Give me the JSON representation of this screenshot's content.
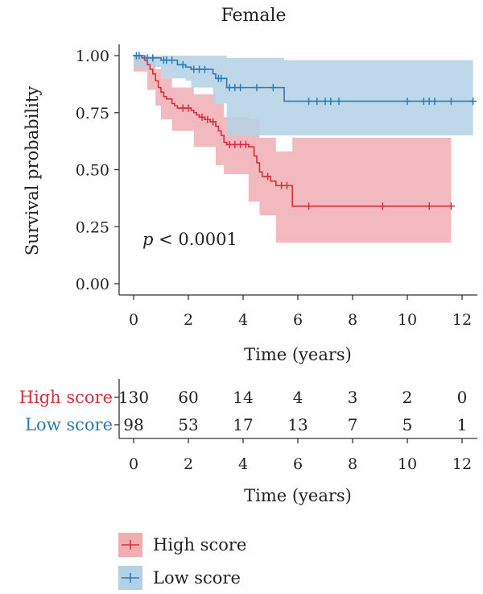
{
  "chart_data": {
    "type": "line",
    "subtype": "kaplan-meier",
    "title": "Female",
    "xlabel": "Time (years)",
    "ylabel": "Survival probability",
    "xlim": [
      -0.5,
      12.5
    ],
    "ylim": [
      -0.05,
      1.05
    ],
    "x_ticks": [
      0,
      2,
      4,
      6,
      8,
      10,
      12
    ],
    "y_ticks": [
      0.0,
      0.25,
      0.5,
      0.75,
      1.0
    ],
    "y_tick_labels": [
      "0.00",
      "0.25",
      "0.50",
      "0.75",
      "1.00"
    ],
    "grid": false,
    "annotation": {
      "italic": "p",
      "text": " < 0.0001"
    },
    "series": [
      {
        "name": "High score",
        "color": "#d7303a",
        "ci_color": "#f0aeb3",
        "steps": [
          [
            0,
            1.0
          ],
          [
            0.3,
            0.99
          ],
          [
            0.4,
            0.98
          ],
          [
            0.5,
            0.96
          ],
          [
            0.6,
            0.94
          ],
          [
            0.7,
            0.92
          ],
          [
            0.8,
            0.89
          ],
          [
            0.9,
            0.86
          ],
          [
            1.0,
            0.84
          ],
          [
            1.1,
            0.82
          ],
          [
            1.2,
            0.81
          ],
          [
            1.4,
            0.79
          ],
          [
            1.5,
            0.78
          ],
          [
            1.6,
            0.77
          ],
          [
            2.1,
            0.76
          ],
          [
            2.2,
            0.75
          ],
          [
            2.3,
            0.74
          ],
          [
            2.4,
            0.73
          ],
          [
            2.6,
            0.72
          ],
          [
            2.8,
            0.71
          ],
          [
            3.0,
            0.69
          ],
          [
            3.1,
            0.67
          ],
          [
            3.2,
            0.65
          ],
          [
            3.3,
            0.62
          ],
          [
            3.4,
            0.61
          ],
          [
            4.2,
            0.6
          ],
          [
            4.4,
            0.56
          ],
          [
            4.5,
            0.53
          ],
          [
            4.6,
            0.49
          ],
          [
            4.7,
            0.47
          ],
          [
            5.0,
            0.45
          ],
          [
            5.2,
            0.43
          ],
          [
            5.8,
            0.34
          ],
          [
            11.6,
            0.34
          ]
        ],
        "ci": [
          [
            0,
            1.0,
            1.0
          ],
          [
            0.5,
            0.93,
            0.99
          ],
          [
            0.8,
            0.85,
            0.94
          ],
          [
            1.0,
            0.78,
            0.9
          ],
          [
            1.4,
            0.72,
            0.86
          ],
          [
            2.2,
            0.67,
            0.83
          ],
          [
            3.0,
            0.6,
            0.79
          ],
          [
            3.3,
            0.52,
            0.73
          ],
          [
            4.2,
            0.48,
            0.72
          ],
          [
            4.6,
            0.36,
            0.64
          ],
          [
            5.2,
            0.3,
            0.58
          ],
          [
            5.8,
            0.18,
            0.64
          ],
          [
            11.6,
            0.18,
            0.64
          ]
        ],
        "censored": [
          [
            1.8,
            0.77
          ],
          [
            2.0,
            0.77
          ],
          [
            2.5,
            0.73
          ],
          [
            2.7,
            0.72
          ],
          [
            2.9,
            0.71
          ],
          [
            3.5,
            0.61
          ],
          [
            3.7,
            0.61
          ],
          [
            3.9,
            0.61
          ],
          [
            4.1,
            0.61
          ],
          [
            4.9,
            0.47
          ],
          [
            5.4,
            0.43
          ],
          [
            5.6,
            0.43
          ],
          [
            6.4,
            0.34
          ],
          [
            9.1,
            0.34
          ],
          [
            10.8,
            0.34
          ],
          [
            11.6,
            0.34
          ]
        ]
      },
      {
        "name": "Low score",
        "color": "#2c7bb6",
        "ci_color": "#b3d1e6",
        "steps": [
          [
            0,
            1.0
          ],
          [
            0.4,
            0.99
          ],
          [
            1.0,
            0.98
          ],
          [
            1.6,
            0.96
          ],
          [
            1.9,
            0.95
          ],
          [
            2.1,
            0.94
          ],
          [
            2.9,
            0.92
          ],
          [
            3.0,
            0.9
          ],
          [
            3.4,
            0.86
          ],
          [
            5.5,
            0.8
          ],
          [
            12.4,
            0.8
          ]
        ],
        "ci": [
          [
            0,
            1.0,
            1.0
          ],
          [
            1.0,
            0.95,
            1.0
          ],
          [
            1.9,
            0.9,
            1.0
          ],
          [
            2.1,
            0.89,
            1.0
          ],
          [
            2.9,
            0.86,
            1.0
          ],
          [
            3.4,
            0.79,
            0.99
          ],
          [
            5.5,
            0.65,
            0.98
          ],
          [
            12.4,
            0.65,
            0.98
          ]
        ],
        "censored": [
          [
            0.1,
            1.0
          ],
          [
            0.2,
            1.0
          ],
          [
            0.5,
            0.99
          ],
          [
            0.7,
            0.99
          ],
          [
            1.1,
            0.98
          ],
          [
            1.2,
            0.98
          ],
          [
            1.4,
            0.98
          ],
          [
            1.8,
            0.96
          ],
          [
            2.2,
            0.94
          ],
          [
            2.4,
            0.94
          ],
          [
            2.6,
            0.94
          ],
          [
            3.1,
            0.9
          ],
          [
            3.2,
            0.9
          ],
          [
            3.5,
            0.86
          ],
          [
            3.7,
            0.86
          ],
          [
            3.9,
            0.86
          ],
          [
            4.5,
            0.86
          ],
          [
            5.1,
            0.86
          ],
          [
            6.4,
            0.8
          ],
          [
            6.7,
            0.8
          ],
          [
            7.0,
            0.8
          ],
          [
            7.2,
            0.8
          ],
          [
            7.5,
            0.8
          ],
          [
            10.0,
            0.8
          ],
          [
            10.6,
            0.8
          ],
          [
            10.8,
            0.8
          ],
          [
            11.0,
            0.8
          ],
          [
            11.6,
            0.8
          ],
          [
            12.4,
            0.8
          ]
        ]
      }
    ]
  },
  "risk_table": {
    "xlabel": "Time (years)",
    "x_ticks": [
      0,
      2,
      4,
      6,
      8,
      10,
      12
    ],
    "rows": [
      {
        "label": "High score",
        "color": "#d7303a",
        "values": [
          130,
          60,
          14,
          4,
          3,
          2,
          0
        ]
      },
      {
        "label": "Low score",
        "color": "#2c7bb6",
        "values": [
          98,
          53,
          17,
          13,
          7,
          5,
          1
        ]
      }
    ]
  },
  "legend": {
    "items": [
      {
        "label": "High score",
        "color": "#d7303a",
        "fill": "#f0aeb3"
      },
      {
        "label": "Low score",
        "color": "#2c7bb6",
        "fill": "#b3d1e6"
      }
    ]
  }
}
